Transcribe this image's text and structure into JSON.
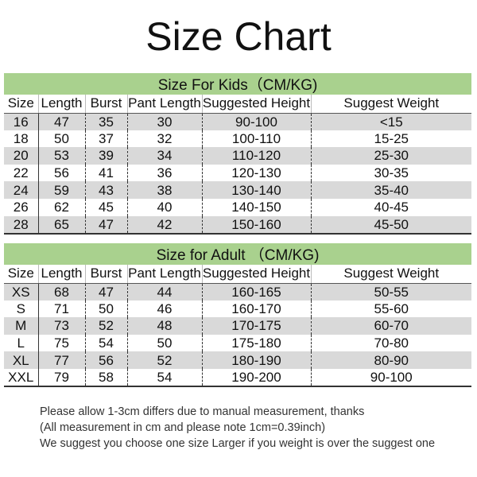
{
  "title": "Size Chart",
  "columns": [
    "Size",
    "Length",
    "Burst",
    "Pant Length",
    "Suggested Height",
    "Suggest Weight"
  ],
  "kids": {
    "heading": "Size For Kids（CM/KG)",
    "rows": [
      [
        "16",
        "47",
        "35",
        "30",
        "90-100",
        "<15"
      ],
      [
        "18",
        "50",
        "37",
        "32",
        "100-110",
        "15-25"
      ],
      [
        "20",
        "53",
        "39",
        "34",
        "110-120",
        "25-30"
      ],
      [
        "22",
        "56",
        "41",
        "36",
        "120-130",
        "30-35"
      ],
      [
        "24",
        "59",
        "43",
        "38",
        "130-140",
        "35-40"
      ],
      [
        "26",
        "62",
        "45",
        "40",
        "140-150",
        "40-45"
      ],
      [
        "28",
        "65",
        "47",
        "42",
        "150-160",
        "45-50"
      ]
    ]
  },
  "adult": {
    "heading": "Size for Adult （CM/KG)",
    "rows": [
      [
        "XS",
        "68",
        "47",
        "44",
        "160-165",
        "50-55"
      ],
      [
        "S",
        "71",
        "50",
        "46",
        "160-170",
        "55-60"
      ],
      [
        "M",
        "73",
        "52",
        "48",
        "170-175",
        "60-70"
      ],
      [
        "L",
        "75",
        "54",
        "50",
        "175-180",
        "70-80"
      ],
      [
        "XL",
        "77",
        "56",
        "52",
        "180-190",
        "80-90"
      ],
      [
        "XXL",
        "79",
        "58",
        "54",
        "190-200",
        "90-100"
      ]
    ]
  },
  "notes": [
    "Please allow 1-3cm differs due to manual measurement, thanks",
    "(All measurement in cm and please note 1cm=0.39inch)",
    "We suggest you choose one size Larger if you weight is over the suggest one"
  ],
  "colors": {
    "banner": "#a9d18e",
    "stripe": "#d9d9d9"
  }
}
